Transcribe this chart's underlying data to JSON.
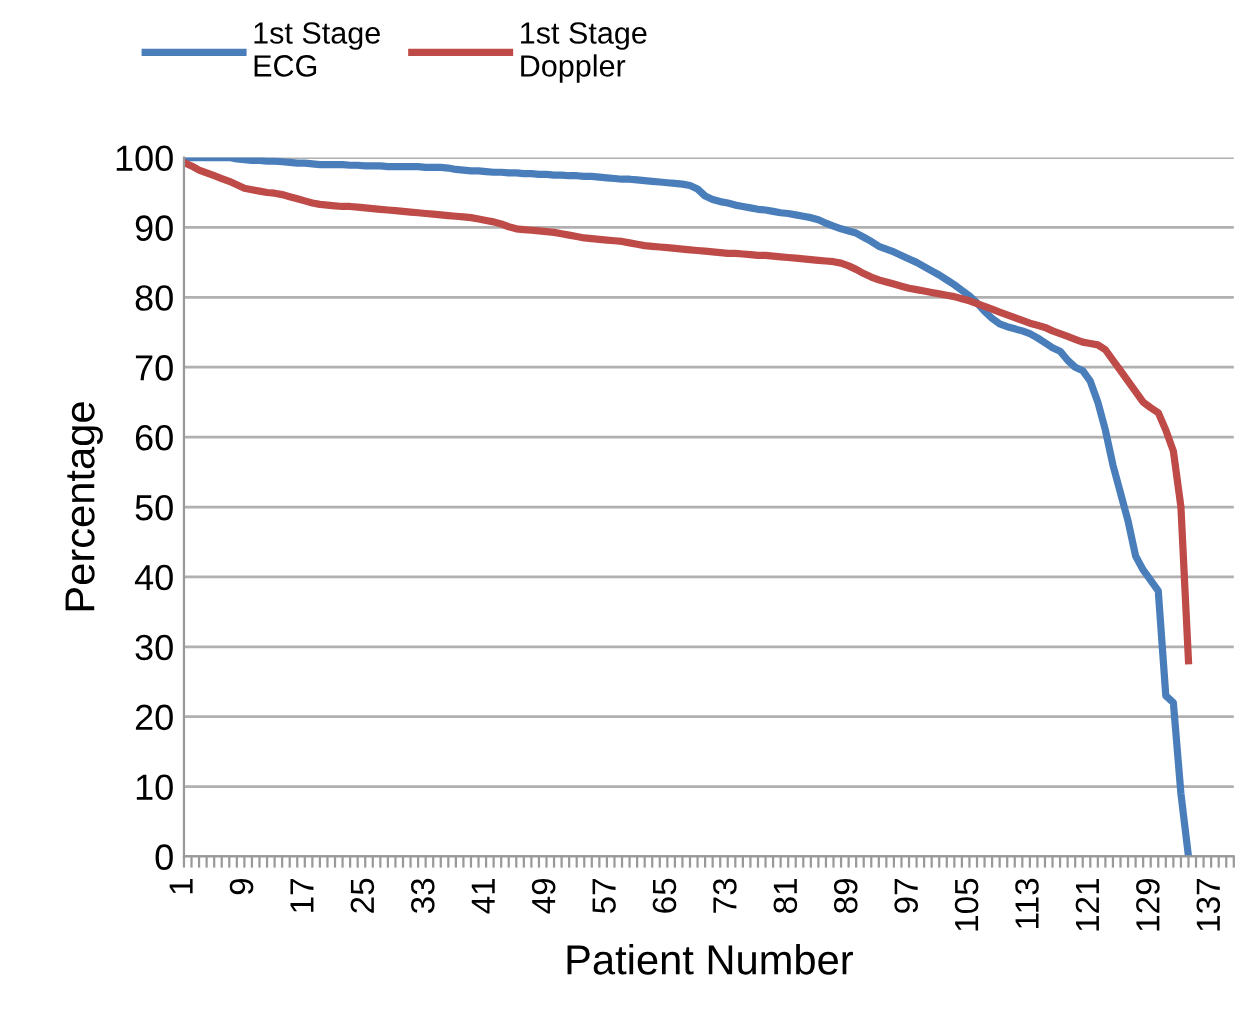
{
  "chart_data": {
    "type": "line",
    "xlabel": "Patient Number",
    "ylabel": "Percentage",
    "categories": [
      "1",
      null,
      null,
      null,
      null,
      null,
      null,
      null,
      "9",
      null,
      null,
      null,
      null,
      null,
      null,
      null,
      "17",
      null,
      null,
      null,
      null,
      null,
      null,
      null,
      "25",
      null,
      null,
      null,
      null,
      null,
      null,
      null,
      "33",
      null,
      null,
      null,
      null,
      null,
      null,
      null,
      "41",
      null,
      null,
      null,
      null,
      null,
      null,
      null,
      "49",
      null,
      null,
      null,
      null,
      null,
      null,
      null,
      "57",
      null,
      null,
      null,
      null,
      null,
      null,
      null,
      "65",
      null,
      null,
      null,
      null,
      null,
      null,
      null,
      "73",
      null,
      null,
      null,
      null,
      null,
      null,
      null,
      "81",
      null,
      null,
      null,
      null,
      null,
      null,
      null,
      "89",
      null,
      null,
      null,
      null,
      null,
      null,
      null,
      "97",
      null,
      null,
      null,
      null,
      null,
      null,
      null,
      "105",
      null,
      null,
      null,
      null,
      null,
      null,
      null,
      "113",
      null,
      null,
      null,
      null,
      null,
      null,
      null,
      "121",
      null,
      null,
      null,
      null,
      null,
      null,
      null,
      "129",
      null,
      null,
      null,
      null,
      null,
      null,
      null,
      "137",
      null,
      null,
      null
    ],
    "ylim": [
      0,
      100
    ],
    "yticks": [
      0,
      10,
      20,
      30,
      40,
      50,
      60,
      70,
      80,
      90,
      100
    ],
    "grid": "y",
    "legend": "top left",
    "marker": "none",
    "line_style": "solid",
    "series": [
      {
        "name": "1st Stage\nECG",
        "color": "#4a7ebb",
        "values": [
          100,
          100,
          100,
          100,
          100,
          100,
          100,
          99.8,
          99.7,
          99.6,
          99.6,
          99.5,
          99.5,
          99.4,
          99.3,
          99.2,
          99.2,
          99.1,
          99.0,
          99.0,
          99,
          99,
          98.9,
          98.9,
          98.8,
          98.8,
          98.8,
          98.7,
          98.7,
          98.7,
          98.7,
          98.7,
          98.6,
          98.6,
          98.6,
          98.5,
          98.3,
          98.2,
          98.1,
          98.1,
          98.0,
          97.9,
          97.9,
          97.8,
          97.8,
          97.7,
          97.7,
          97.6,
          97.6,
          97.5,
          97.5,
          97.4,
          97.4,
          97.3,
          97.3,
          97.2,
          97.1,
          97.0,
          96.9,
          96.9,
          96.8,
          96.7,
          96.6,
          96.5,
          96.4,
          96.3,
          96.2,
          96,
          95.5,
          94.5,
          94,
          93.7,
          93.5,
          93.2,
          93,
          92.8,
          92.6,
          92.5,
          92.3,
          92.1,
          92,
          91.8,
          91.6,
          91.4,
          91.1,
          90.6,
          90.2,
          89.8,
          89.5,
          89.2,
          88.6,
          88,
          87.3,
          86.9,
          86.5,
          86,
          85.5,
          85,
          84.4,
          83.8,
          83.2,
          82.5,
          81.8,
          81,
          80.2,
          79.2,
          78,
          77,
          76.2,
          75.8,
          75.5,
          75.2,
          74.8,
          74.2,
          73.5,
          72.8,
          72.3,
          71,
          70,
          69.5,
          68,
          65,
          61,
          56,
          52,
          48,
          43,
          41,
          39.5,
          38,
          23,
          22,
          9,
          0,
          null,
          null,
          null,
          null,
          null,
          null
        ]
      },
      {
        "name": "1st Stage\nDoppler",
        "color": "#be4b48",
        "values": [
          99.3,
          98.8,
          98.2,
          97.8,
          97.4,
          97,
          96.6,
          96.1,
          95.6,
          95.4,
          95.2,
          95,
          94.9,
          94.7,
          94.4,
          94.1,
          93.8,
          93.5,
          93.3,
          93.2,
          93.1,
          93,
          93,
          92.9,
          92.8,
          92.7,
          92.6,
          92.5,
          92.4,
          92.3,
          92.2,
          92.1,
          92,
          91.9,
          91.8,
          91.7,
          91.6,
          91.5,
          91.4,
          91.2,
          91,
          90.8,
          90.5,
          90.1,
          89.8,
          89.7,
          89.6,
          89.5,
          89.4,
          89.3,
          89.1,
          88.9,
          88.7,
          88.5,
          88.4,
          88.3,
          88.2,
          88.1,
          88,
          87.8,
          87.6,
          87.4,
          87.3,
          87.2,
          87.1,
          87,
          86.9,
          86.8,
          86.7,
          86.6,
          86.5,
          86.4,
          86.3,
          86.3,
          86.2,
          86.1,
          86,
          86,
          85.9,
          85.8,
          85.7,
          85.6,
          85.5,
          85.4,
          85.3,
          85.2,
          85.1,
          84.9,
          84.5,
          84,
          83.4,
          82.9,
          82.5,
          82.2,
          81.9,
          81.6,
          81.3,
          81.1,
          80.9,
          80.7,
          80.5,
          80.3,
          80.1,
          79.8,
          79.5,
          79.1,
          78.7,
          78.3,
          77.9,
          77.5,
          77.1,
          76.7,
          76.3,
          76,
          75.7,
          75.2,
          74.8,
          74.4,
          74,
          73.6,
          73.4,
          73.2,
          72.5,
          71,
          69.5,
          68,
          66.5,
          65,
          64.2,
          63.5,
          61,
          58,
          50,
          28,
          null,
          null,
          null,
          null,
          null,
          null
        ]
      }
    ]
  }
}
